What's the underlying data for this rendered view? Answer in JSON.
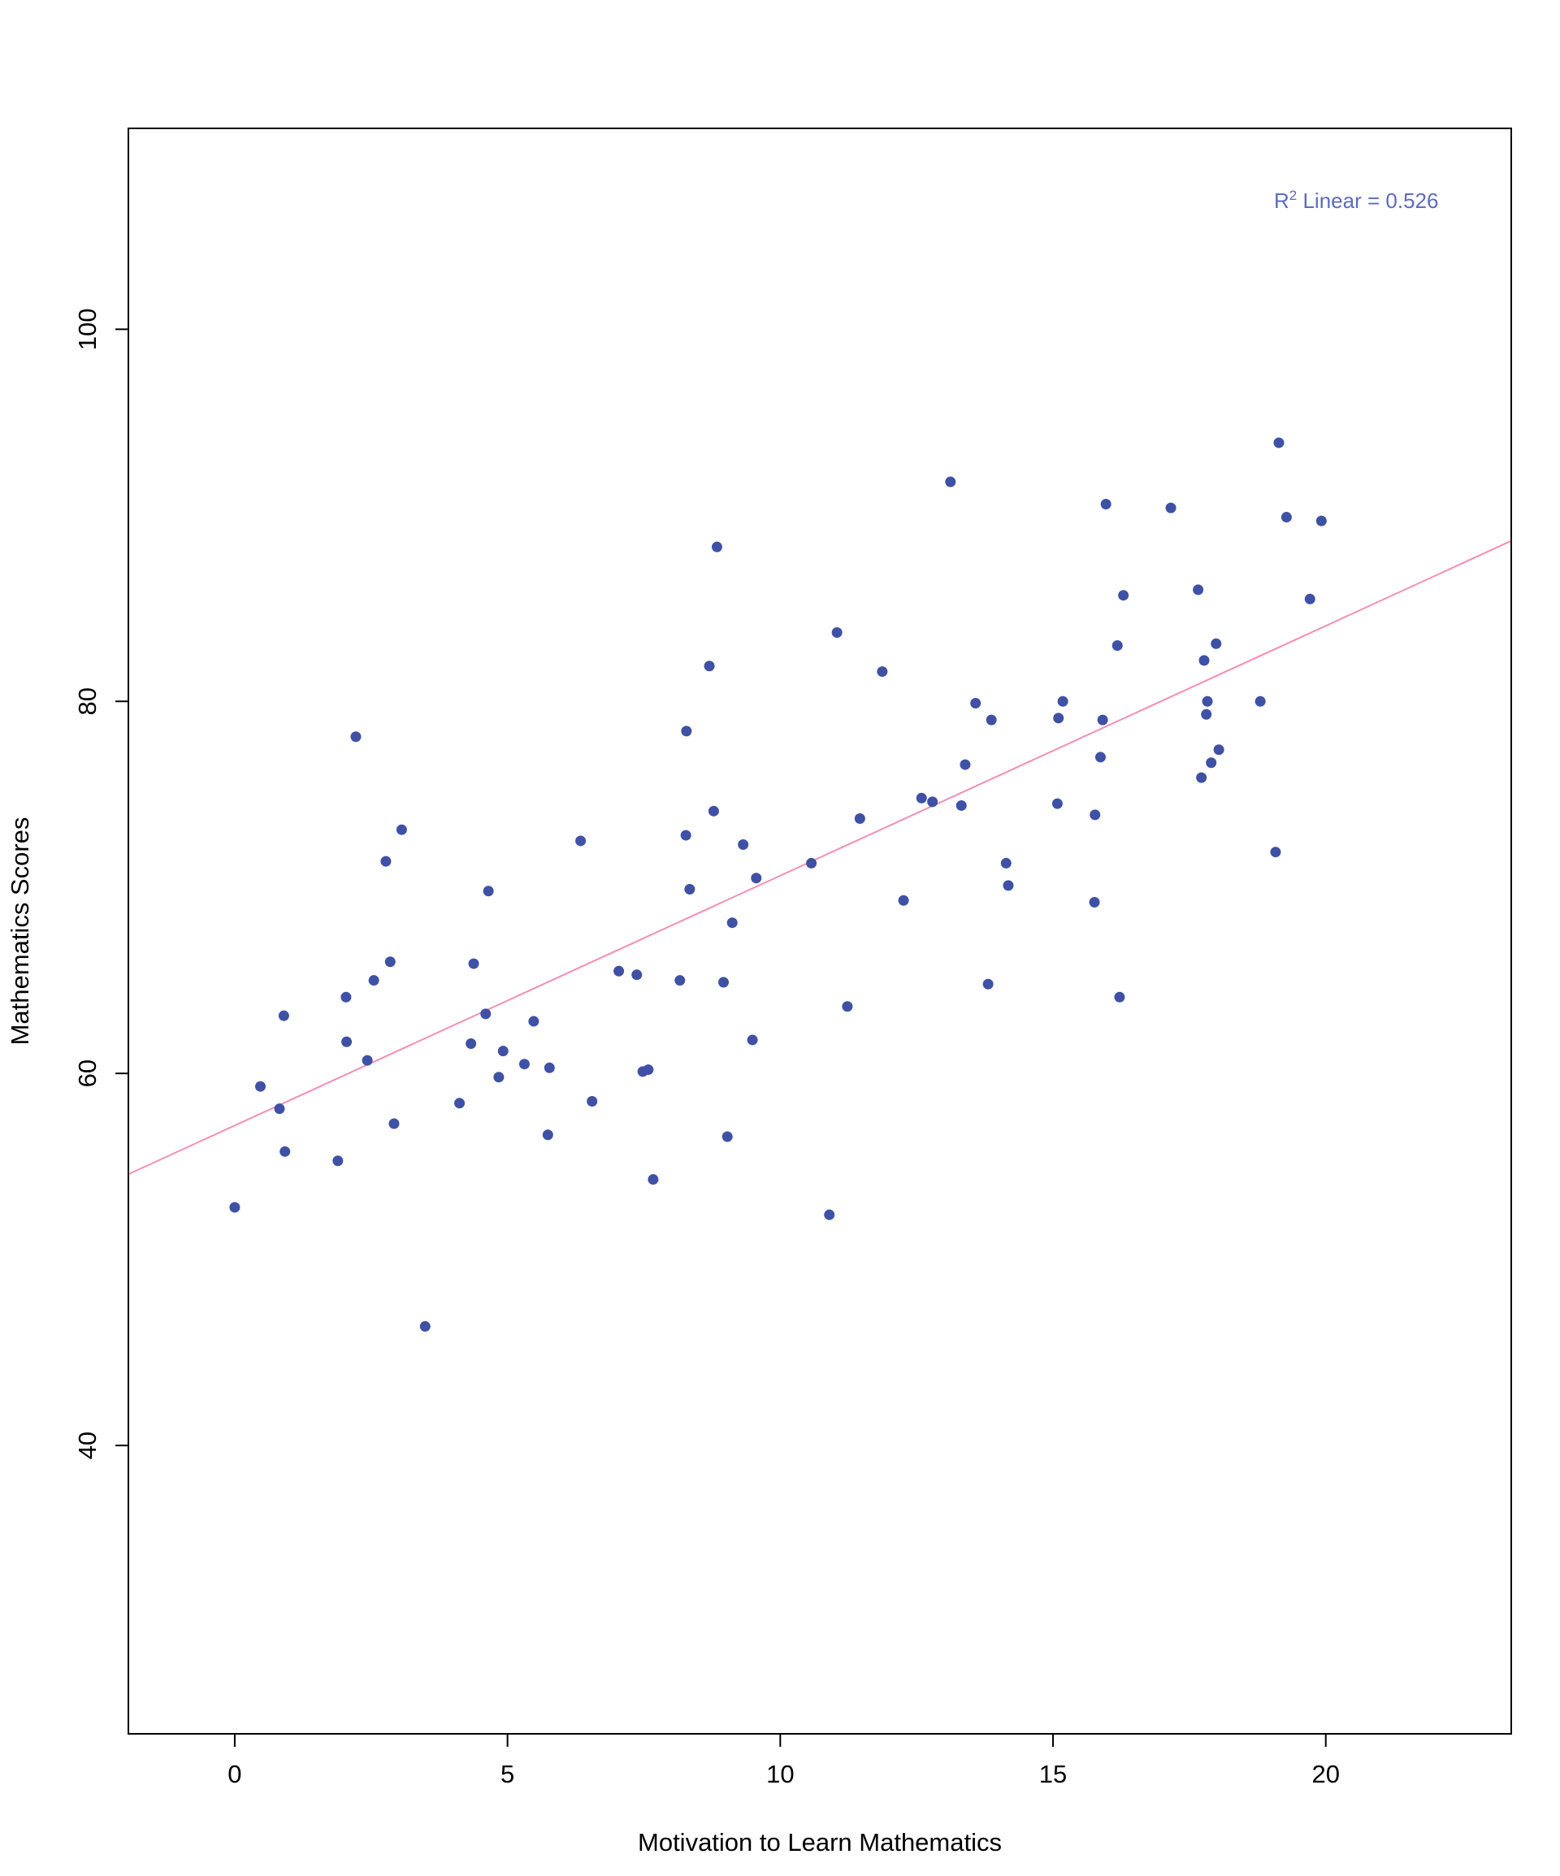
{
  "chart_data": {
    "type": "scatter",
    "title": "",
    "xlabel": "Motivation to Learn Mathematics",
    "ylabel": "Mathematics Scores",
    "xlim": [
      -1.95,
      23.4
    ],
    "ylim": [
      24.5,
      110.8
    ],
    "xticks": [
      0,
      5,
      10,
      15,
      20
    ],
    "yticks": [
      40,
      60,
      80,
      100
    ],
    "grid": false,
    "legend": "none",
    "annotation": {
      "prefix": "R",
      "superscript": "2",
      "text": " Linear = 0.526"
    },
    "fit_line": {
      "type": "linear",
      "intercept": 57.2,
      "slope": 1.343
    },
    "colors": {
      "points": "#3F51A5",
      "fit_line": "#F48FB1",
      "annotation": "#5C6BC0",
      "axis": "#000000"
    },
    "series": [
      {
        "points": [
          [
            0.0,
            52.8
          ],
          [
            0.47,
            59.3
          ],
          [
            0.82,
            58.1
          ],
          [
            0.9,
            63.1
          ],
          [
            0.92,
            55.8
          ],
          [
            1.89,
            55.3
          ],
          [
            2.04,
            64.1
          ],
          [
            2.05,
            61.7
          ],
          [
            2.22,
            78.1
          ],
          [
            2.43,
            60.7
          ],
          [
            2.55,
            65.0
          ],
          [
            2.77,
            71.4
          ],
          [
            2.85,
            66.0
          ],
          [
            2.92,
            57.3
          ],
          [
            3.06,
            73.1
          ],
          [
            3.49,
            46.4
          ],
          [
            4.12,
            58.4
          ],
          [
            4.33,
            61.6
          ],
          [
            4.38,
            65.9
          ],
          [
            4.6,
            63.2
          ],
          [
            4.65,
            69.8
          ],
          [
            4.84,
            59.8
          ],
          [
            4.92,
            61.2
          ],
          [
            5.31,
            60.5
          ],
          [
            5.48,
            62.8
          ],
          [
            5.74,
            56.7
          ],
          [
            5.77,
            60.3
          ],
          [
            6.34,
            72.5
          ],
          [
            6.55,
            58.5
          ],
          [
            7.04,
            65.5
          ],
          [
            7.37,
            65.3
          ],
          [
            7.48,
            60.1
          ],
          [
            7.58,
            60.2
          ],
          [
            7.67,
            54.3
          ],
          [
            8.16,
            65.0
          ],
          [
            8.27,
            72.8
          ],
          [
            8.28,
            78.4
          ],
          [
            8.34,
            69.9
          ],
          [
            8.7,
            81.9
          ],
          [
            8.78,
            74.1
          ],
          [
            8.84,
            88.3
          ],
          [
            8.96,
            64.9
          ],
          [
            9.03,
            56.6
          ],
          [
            9.12,
            68.1
          ],
          [
            9.32,
            72.3
          ],
          [
            9.49,
            61.8
          ],
          [
            9.56,
            70.5
          ],
          [
            10.57,
            71.3
          ],
          [
            10.9,
            52.4
          ],
          [
            11.04,
            83.7
          ],
          [
            11.23,
            63.6
          ],
          [
            11.46,
            73.7
          ],
          [
            11.87,
            81.6
          ],
          [
            12.26,
            69.3
          ],
          [
            12.59,
            74.8
          ],
          [
            12.79,
            74.6
          ],
          [
            13.12,
            91.8
          ],
          [
            13.32,
            74.4
          ],
          [
            13.39,
            76.6
          ],
          [
            13.58,
            79.9
          ],
          [
            13.81,
            64.8
          ],
          [
            13.87,
            79.0
          ],
          [
            14.14,
            71.3
          ],
          [
            14.18,
            70.1
          ],
          [
            15.08,
            74.5
          ],
          [
            15.1,
            79.1
          ],
          [
            15.18,
            80.0
          ],
          [
            15.76,
            69.2
          ],
          [
            15.77,
            73.9
          ],
          [
            15.87,
            77.0
          ],
          [
            15.91,
            79.0
          ],
          [
            15.97,
            90.6
          ],
          [
            16.18,
            83.0
          ],
          [
            16.22,
            64.1
          ],
          [
            16.29,
            85.7
          ],
          [
            17.16,
            90.4
          ],
          [
            17.66,
            86.0
          ],
          [
            17.72,
            75.9
          ],
          [
            17.77,
            82.2
          ],
          [
            17.81,
            79.3
          ],
          [
            17.83,
            80.0
          ],
          [
            17.9,
            76.7
          ],
          [
            17.99,
            83.1
          ],
          [
            18.04,
            77.4
          ],
          [
            18.8,
            80.0
          ],
          [
            19.08,
            71.9
          ],
          [
            19.14,
            93.9
          ],
          [
            19.28,
            89.9
          ],
          [
            19.71,
            85.5
          ],
          [
            19.92,
            89.7
          ]
        ]
      }
    ]
  }
}
